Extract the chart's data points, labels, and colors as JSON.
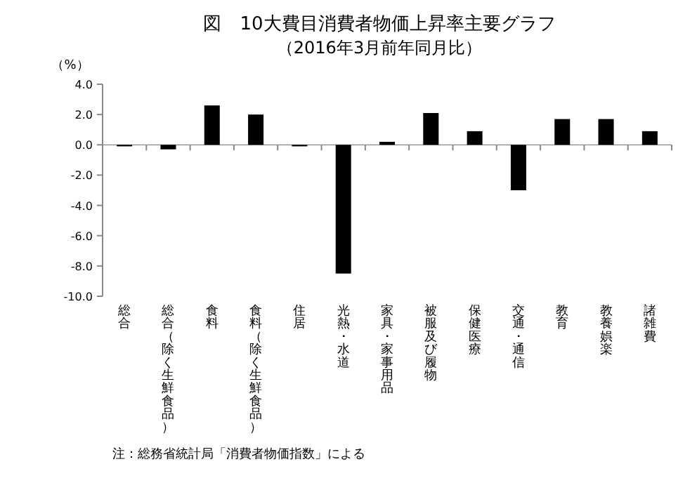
{
  "chart_data": {
    "type": "bar",
    "title": "図　10大費目消費者物価上昇率主要グラフ",
    "subtitle": "（2016年3月前年同月比）",
    "ylabel": "（%）",
    "categories": [
      "総合",
      "総合（除く生鮮食品）",
      "食料",
      "食料（除く生鮮食品）",
      "住居",
      "光熱・水道",
      "家具・家事用品",
      "被服及び履物",
      "保健医療",
      "交通・通信",
      "教育",
      "教養娯楽",
      "諸雑費"
    ],
    "values": [
      -0.1,
      -0.3,
      2.6,
      2.0,
      -0.1,
      -8.5,
      0.2,
      2.1,
      0.9,
      -3.0,
      1.7,
      1.7,
      0.9
    ],
    "color": "#000000",
    "ylim": [
      -10,
      4
    ],
    "yticks": [
      {
        "value": -10,
        "label": "-10.0"
      },
      {
        "value": -8,
        "label": "-8.0"
      },
      {
        "value": -6,
        "label": "-6.0"
      },
      {
        "value": -4,
        "label": "-4.0"
      },
      {
        "value": -2,
        "label": "-2.0"
      },
      {
        "value": 0,
        "label": "0.0"
      },
      {
        "value": 2,
        "label": "2.0"
      },
      {
        "value": 4,
        "label": "4.0"
      }
    ],
    "annotations": [
      "注：総務省統計局「消費者物価指数」による"
    ]
  }
}
